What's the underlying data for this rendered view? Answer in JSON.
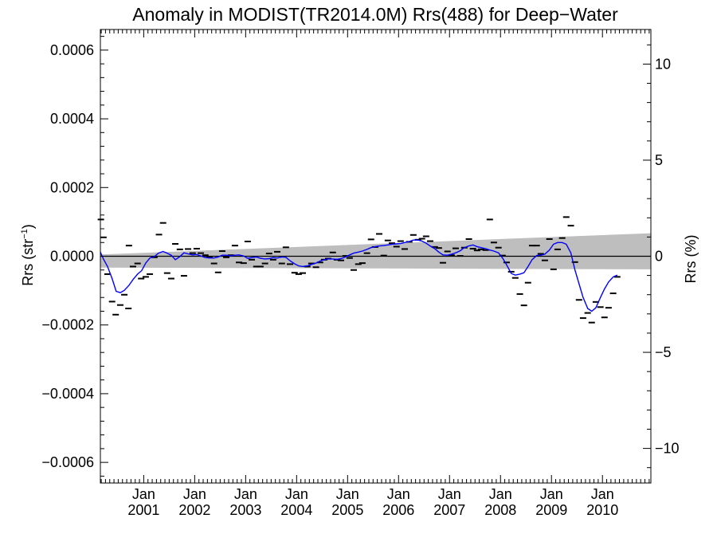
{
  "chart_data": {
    "type": "scatter",
    "title": "Anomaly in MODIST(TR2014.0M) Rrs(488) for Deep−Water",
    "ylabel_left_main": "Rrs (str",
    "ylabel_left_sup": "−1",
    "ylabel_left_close": ")",
    "ylabel_right": "Rrs (%)",
    "xlim": [
      2000.15,
      2010.95
    ],
    "ylim": [
      -0.00066,
      0.00066
    ],
    "ylim_right": [
      -11.8,
      11.8
    ],
    "grid": false,
    "x_ticks": [
      {
        "x": 2001.0,
        "line1": "Jan",
        "line2": "2001"
      },
      {
        "x": 2002.0,
        "line1": "Jan",
        "line2": "2002"
      },
      {
        "x": 2003.0,
        "line1": "Jan",
        "line2": "2003"
      },
      {
        "x": 2004.0,
        "line1": "Jan",
        "line2": "2004"
      },
      {
        "x": 2005.0,
        "line1": "Jan",
        "line2": "2005"
      },
      {
        "x": 2006.0,
        "line1": "Jan",
        "line2": "2006"
      },
      {
        "x": 2007.0,
        "line1": "Jan",
        "line2": "2007"
      },
      {
        "x": 2008.0,
        "line1": "Jan",
        "line2": "2008"
      },
      {
        "x": 2009.0,
        "line1": "Jan",
        "line2": "2009"
      },
      {
        "x": 2010.0,
        "line1": "Jan",
        "line2": "2010"
      }
    ],
    "y_ticks_left": [
      {
        "value": 0.0006,
        "label": "0.0006"
      },
      {
        "value": 0.0004,
        "label": "0.0004"
      },
      {
        "value": 0.0002,
        "label": "0.0002"
      },
      {
        "value": 0.0,
        "label": "0.0000"
      },
      {
        "value": -0.0002,
        "label": "−0.0002"
      },
      {
        "value": -0.0004,
        "label": "−0.0004"
      },
      {
        "value": -0.0006,
        "label": "−0.0006"
      }
    ],
    "y_ticks_right": [
      {
        "value": 10,
        "label": "10"
      },
      {
        "value": 5,
        "label": "5"
      },
      {
        "value": 0,
        "label": "0"
      },
      {
        "value": -5,
        "label": "−5"
      },
      {
        "value": -10,
        "label": "−10"
      }
    ],
    "uncertainty_band": {
      "color": "#bebebe",
      "x": [
        2000.15,
        2010.95
      ],
      "upper": [
        5e-06,
        6.7e-05
      ],
      "lower": [
        -3.3e-05,
        -3.8e-05
      ]
    },
    "zero_line_color": "#000000",
    "series": [
      {
        "kind": "markers",
        "color": "#000000",
        "points": [
          [
            2000.16,
            0.000107
          ],
          [
            2000.21,
            5.5e-05
          ],
          [
            2000.29,
            -5.2e-05
          ],
          [
            2000.38,
            -0.000132
          ],
          [
            2000.45,
            -0.00017
          ],
          [
            2000.54,
            -0.000142
          ],
          [
            2000.62,
            -0.000112
          ],
          [
            2000.7,
            -0.000152
          ],
          [
            2000.71,
            3.1e-05
          ],
          [
            2000.79,
            -3e-05
          ],
          [
            2000.88,
            -2.1e-05
          ],
          [
            2000.95,
            -6.5e-05
          ],
          [
            2001.04,
            -6e-05
          ],
          [
            2001.12,
            -5.2e-05
          ],
          [
            2001.21,
            -3e-06
          ],
          [
            2001.3,
            6.3e-05
          ],
          [
            2001.38,
            9.7e-05
          ],
          [
            2001.46,
            -4.9e-05
          ],
          [
            2001.54,
            -6.5e-05
          ],
          [
            2001.62,
            3.6e-05
          ],
          [
            2001.71,
            2e-05
          ],
          [
            2001.79,
            -5.7e-05
          ],
          [
            2001.87,
            2.1e-05
          ],
          [
            2001.96,
            9e-06
          ],
          [
            2002.04,
            2.2e-05
          ],
          [
            2002.12,
            9e-06
          ],
          [
            2002.21,
            3e-06
          ],
          [
            2002.29,
            -3e-06
          ],
          [
            2002.38,
            -2.1e-05
          ],
          [
            2002.46,
            -4.7e-05
          ],
          [
            2002.54,
            1.5e-05
          ],
          [
            2002.62,
            -3e-06
          ],
          [
            2002.71,
            3e-06
          ],
          [
            2002.79,
            3.1e-05
          ],
          [
            2002.87,
            -1.8e-05
          ],
          [
            2002.96,
            -2e-05
          ],
          [
            2003.04,
            4.3e-05
          ],
          [
            2003.12,
            -1e-05
          ],
          [
            2003.21,
            -3e-05
          ],
          [
            2003.29,
            -3e-05
          ],
          [
            2003.38,
            -2.1e-05
          ],
          [
            2003.46,
            8e-06
          ],
          [
            2003.54,
            -1e-05
          ],
          [
            2003.62,
            1.3e-05
          ],
          [
            2003.71,
            -2.1e-05
          ],
          [
            2003.79,
            2.6e-05
          ],
          [
            2003.87,
            -2.3e-05
          ],
          [
            2003.96,
            -4.8e-05
          ],
          [
            2004.04,
            -5.2e-05
          ],
          [
            2004.12,
            -4.9e-05
          ],
          [
            2004.21,
            -3e-05
          ],
          [
            2004.29,
            -2.1e-05
          ],
          [
            2004.38,
            -3.2e-05
          ],
          [
            2004.46,
            -1.8e-05
          ],
          [
            2004.54,
            -1e-05
          ],
          [
            2004.62,
            -7e-06
          ],
          [
            2004.71,
            1.1e-05
          ],
          [
            2004.79,
            -1e-05
          ],
          [
            2004.87,
            -1.2e-05
          ],
          [
            2004.96,
            1e-06
          ],
          [
            2005.04,
            -5e-06
          ],
          [
            2005.12,
            -4e-05
          ],
          [
            2005.21,
            -2.3e-05
          ],
          [
            2005.29,
            -2e-05
          ],
          [
            2005.38,
            9e-06
          ],
          [
            2005.46,
            4.9e-05
          ],
          [
            2005.54,
            2.7e-05
          ],
          [
            2005.62,
            6.5e-05
          ],
          [
            2005.71,
            2e-06
          ],
          [
            2005.79,
            4.6e-05
          ],
          [
            2005.87,
            3.8e-05
          ],
          [
            2005.96,
            2.8e-05
          ],
          [
            2006.04,
            4.4e-05
          ],
          [
            2006.12,
            2.1e-05
          ],
          [
            2006.21,
            4.2e-05
          ],
          [
            2006.29,
            6.2e-05
          ],
          [
            2006.38,
            4.8e-05
          ],
          [
            2006.46,
            5.1e-05
          ],
          [
            2006.54,
            5.8e-05
          ],
          [
            2006.62,
            4.4e-05
          ],
          [
            2006.71,
            2.7e-05
          ],
          [
            2006.79,
            2.4e-05
          ],
          [
            2006.87,
            -1.9e-05
          ],
          [
            2006.96,
            1.4e-05
          ],
          [
            2007.04,
            3e-06
          ],
          [
            2007.12,
            2.3e-05
          ],
          [
            2007.21,
            1e-06
          ],
          [
            2007.29,
            2.5e-05
          ],
          [
            2007.38,
            5e-05
          ],
          [
            2007.46,
            2.2e-05
          ],
          [
            2007.54,
            1.7e-05
          ],
          [
            2007.62,
            2e-05
          ],
          [
            2007.71,
            1.8e-05
          ],
          [
            2007.79,
            0.000107
          ],
          [
            2007.87,
            4e-05
          ],
          [
            2007.96,
            2.5e-05
          ],
          [
            2008.04,
            2e-06
          ],
          [
            2008.12,
            -1.8e-05
          ],
          [
            2008.21,
            -4.5e-05
          ],
          [
            2008.29,
            -6.3e-05
          ],
          [
            2008.38,
            -0.00011
          ],
          [
            2008.46,
            -0.000143
          ],
          [
            2008.54,
            -7.7e-05
          ],
          [
            2008.62,
            3.1e-05
          ],
          [
            2008.71,
            3.1e-05
          ],
          [
            2008.79,
            7e-06
          ],
          [
            2008.87,
            -1.2e-05
          ],
          [
            2008.96,
            5e-05
          ],
          [
            2009.04,
            -3.8e-05
          ],
          [
            2009.12,
            2e-05
          ],
          [
            2009.21,
            5.3e-05
          ],
          [
            2009.29,
            0.000114
          ],
          [
            2009.38,
            8.9e-05
          ],
          [
            2009.46,
            -1.7e-05
          ],
          [
            2009.54,
            -0.000127
          ],
          [
            2009.62,
            -0.00018
          ],
          [
            2009.71,
            -0.000165
          ],
          [
            2009.79,
            -0.000193
          ],
          [
            2009.87,
            -0.000133
          ],
          [
            2009.96,
            -0.000148
          ],
          [
            2010.04,
            -0.000178
          ],
          [
            2010.12,
            -0.00015
          ],
          [
            2010.21,
            -0.000108
          ],
          [
            2010.29,
            -6e-05
          ]
        ]
      },
      {
        "kind": "smoothed-line",
        "color": "#0000ff",
        "points": [
          [
            2000.15,
            1.2e-05
          ],
          [
            2000.21,
            -8e-06
          ],
          [
            2000.29,
            -3e-05
          ],
          [
            2000.38,
            -6.5e-05
          ],
          [
            2000.46,
            -0.000102
          ],
          [
            2000.54,
            -0.000106
          ],
          [
            2000.62,
            -9.9e-05
          ],
          [
            2000.71,
            -8.5e-05
          ],
          [
            2000.79,
            -6.8e-05
          ],
          [
            2000.88,
            -5.2e-05
          ],
          [
            2000.96,
            -4.2e-05
          ],
          [
            2001.04,
            -2e-05
          ],
          [
            2001.12,
            -5e-06
          ],
          [
            2001.21,
            -1e-06
          ],
          [
            2001.29,
            9e-06
          ],
          [
            2001.38,
            1.4e-05
          ],
          [
            2001.46,
            9e-06
          ],
          [
            2001.54,
            3e-06
          ],
          [
            2001.62,
            -1e-05
          ],
          [
            2001.71,
            -1e-06
          ],
          [
            2001.79,
            1e-05
          ],
          [
            2001.87,
            7e-06
          ],
          [
            2001.96,
            4e-06
          ],
          [
            2002.04,
            5e-06
          ],
          [
            2002.12,
            1e-06
          ],
          [
            2002.21,
            -4e-06
          ],
          [
            2002.29,
            -5e-06
          ],
          [
            2002.38,
            -5e-06
          ],
          [
            2002.46,
            -2e-06
          ],
          [
            2002.54,
            3e-06
          ],
          [
            2002.62,
            3e-06
          ],
          [
            2002.71,
            1e-06
          ],
          [
            2002.79,
            3e-06
          ],
          [
            2002.87,
            4e-06
          ],
          [
            2002.96,
            1e-06
          ],
          [
            2003.04,
            -6e-06
          ],
          [
            2003.12,
            -4e-06
          ],
          [
            2003.21,
            -2e-06
          ],
          [
            2003.29,
            -6e-06
          ],
          [
            2003.38,
            -8e-06
          ],
          [
            2003.46,
            -7e-06
          ],
          [
            2003.54,
            -4e-06
          ],
          [
            2003.62,
            -5e-06
          ],
          [
            2003.71,
            -2e-06
          ],
          [
            2003.79,
            -3e-06
          ],
          [
            2003.87,
            -1.3e-05
          ],
          [
            2003.96,
            -2.2e-05
          ],
          [
            2004.04,
            -2.8e-05
          ],
          [
            2004.12,
            -3e-05
          ],
          [
            2004.21,
            -2.8e-05
          ],
          [
            2004.29,
            -2.4e-05
          ],
          [
            2004.38,
            -2e-05
          ],
          [
            2004.46,
            -1.4e-05
          ],
          [
            2004.54,
            -1e-05
          ],
          [
            2004.62,
            -8e-06
          ],
          [
            2004.71,
            -8e-06
          ],
          [
            2004.79,
            -9e-06
          ],
          [
            2004.87,
            -7e-06
          ],
          [
            2004.96,
            -2e-06
          ],
          [
            2005.04,
            4e-06
          ],
          [
            2005.12,
            9e-06
          ],
          [
            2005.21,
            1.2e-05
          ],
          [
            2005.29,
            1.5e-05
          ],
          [
            2005.38,
            2e-05
          ],
          [
            2005.46,
            2.5e-05
          ],
          [
            2005.54,
            2.8e-05
          ],
          [
            2005.62,
            3e-05
          ],
          [
            2005.71,
            3.1e-05
          ],
          [
            2005.79,
            3.3e-05
          ],
          [
            2005.87,
            3.5e-05
          ],
          [
            2005.96,
            3.6e-05
          ],
          [
            2006.04,
            3.7e-05
          ],
          [
            2006.12,
            4e-05
          ],
          [
            2006.21,
            4.3e-05
          ],
          [
            2006.29,
            4.7e-05
          ],
          [
            2006.38,
            4.7e-05
          ],
          [
            2006.46,
            4.4e-05
          ],
          [
            2006.54,
            3.8e-05
          ],
          [
            2006.62,
            3e-05
          ],
          [
            2006.71,
            2.2e-05
          ],
          [
            2006.79,
            1.2e-05
          ],
          [
            2006.87,
            4e-06
          ],
          [
            2006.96,
            3e-06
          ],
          [
            2007.04,
            6e-06
          ],
          [
            2007.12,
            1e-05
          ],
          [
            2007.21,
            1.6e-05
          ],
          [
            2007.29,
            2.5e-05
          ],
          [
            2007.38,
            3e-05
          ],
          [
            2007.46,
            3.3e-05
          ],
          [
            2007.54,
            2.8e-05
          ],
          [
            2007.62,
            2.5e-05
          ],
          [
            2007.71,
            2.2e-05
          ],
          [
            2007.79,
            1.8e-05
          ],
          [
            2007.87,
            1.5e-05
          ],
          [
            2007.96,
            1e-05
          ],
          [
            2008.04,
            -5e-06
          ],
          [
            2008.12,
            -2.5e-05
          ],
          [
            2008.21,
            -5e-05
          ],
          [
            2008.29,
            -5.5e-05
          ],
          [
            2008.38,
            -5.2e-05
          ],
          [
            2008.46,
            -4.8e-05
          ],
          [
            2008.54,
            -3e-05
          ],
          [
            2008.62,
            -1e-05
          ],
          [
            2008.71,
            2e-06
          ],
          [
            2008.79,
            3e-06
          ],
          [
            2008.87,
            6e-06
          ],
          [
            2008.96,
            1.8e-05
          ],
          [
            2009.04,
            3.5e-05
          ],
          [
            2009.12,
            4e-05
          ],
          [
            2009.21,
            4e-05
          ],
          [
            2009.29,
            3.5e-05
          ],
          [
            2009.38,
            1e-05
          ],
          [
            2009.46,
            -4e-05
          ],
          [
            2009.54,
            -8e-05
          ],
          [
            2009.62,
            -0.00012
          ],
          [
            2009.71,
            -0.000152
          ],
          [
            2009.79,
            -0.00016
          ],
          [
            2009.87,
            -0.00015
          ],
          [
            2009.96,
            -0.00012
          ],
          [
            2010.04,
            -9.5e-05
          ],
          [
            2010.12,
            -7.5e-05
          ],
          [
            2010.21,
            -6e-05
          ],
          [
            2010.29,
            -5.5e-05
          ]
        ]
      }
    ]
  }
}
